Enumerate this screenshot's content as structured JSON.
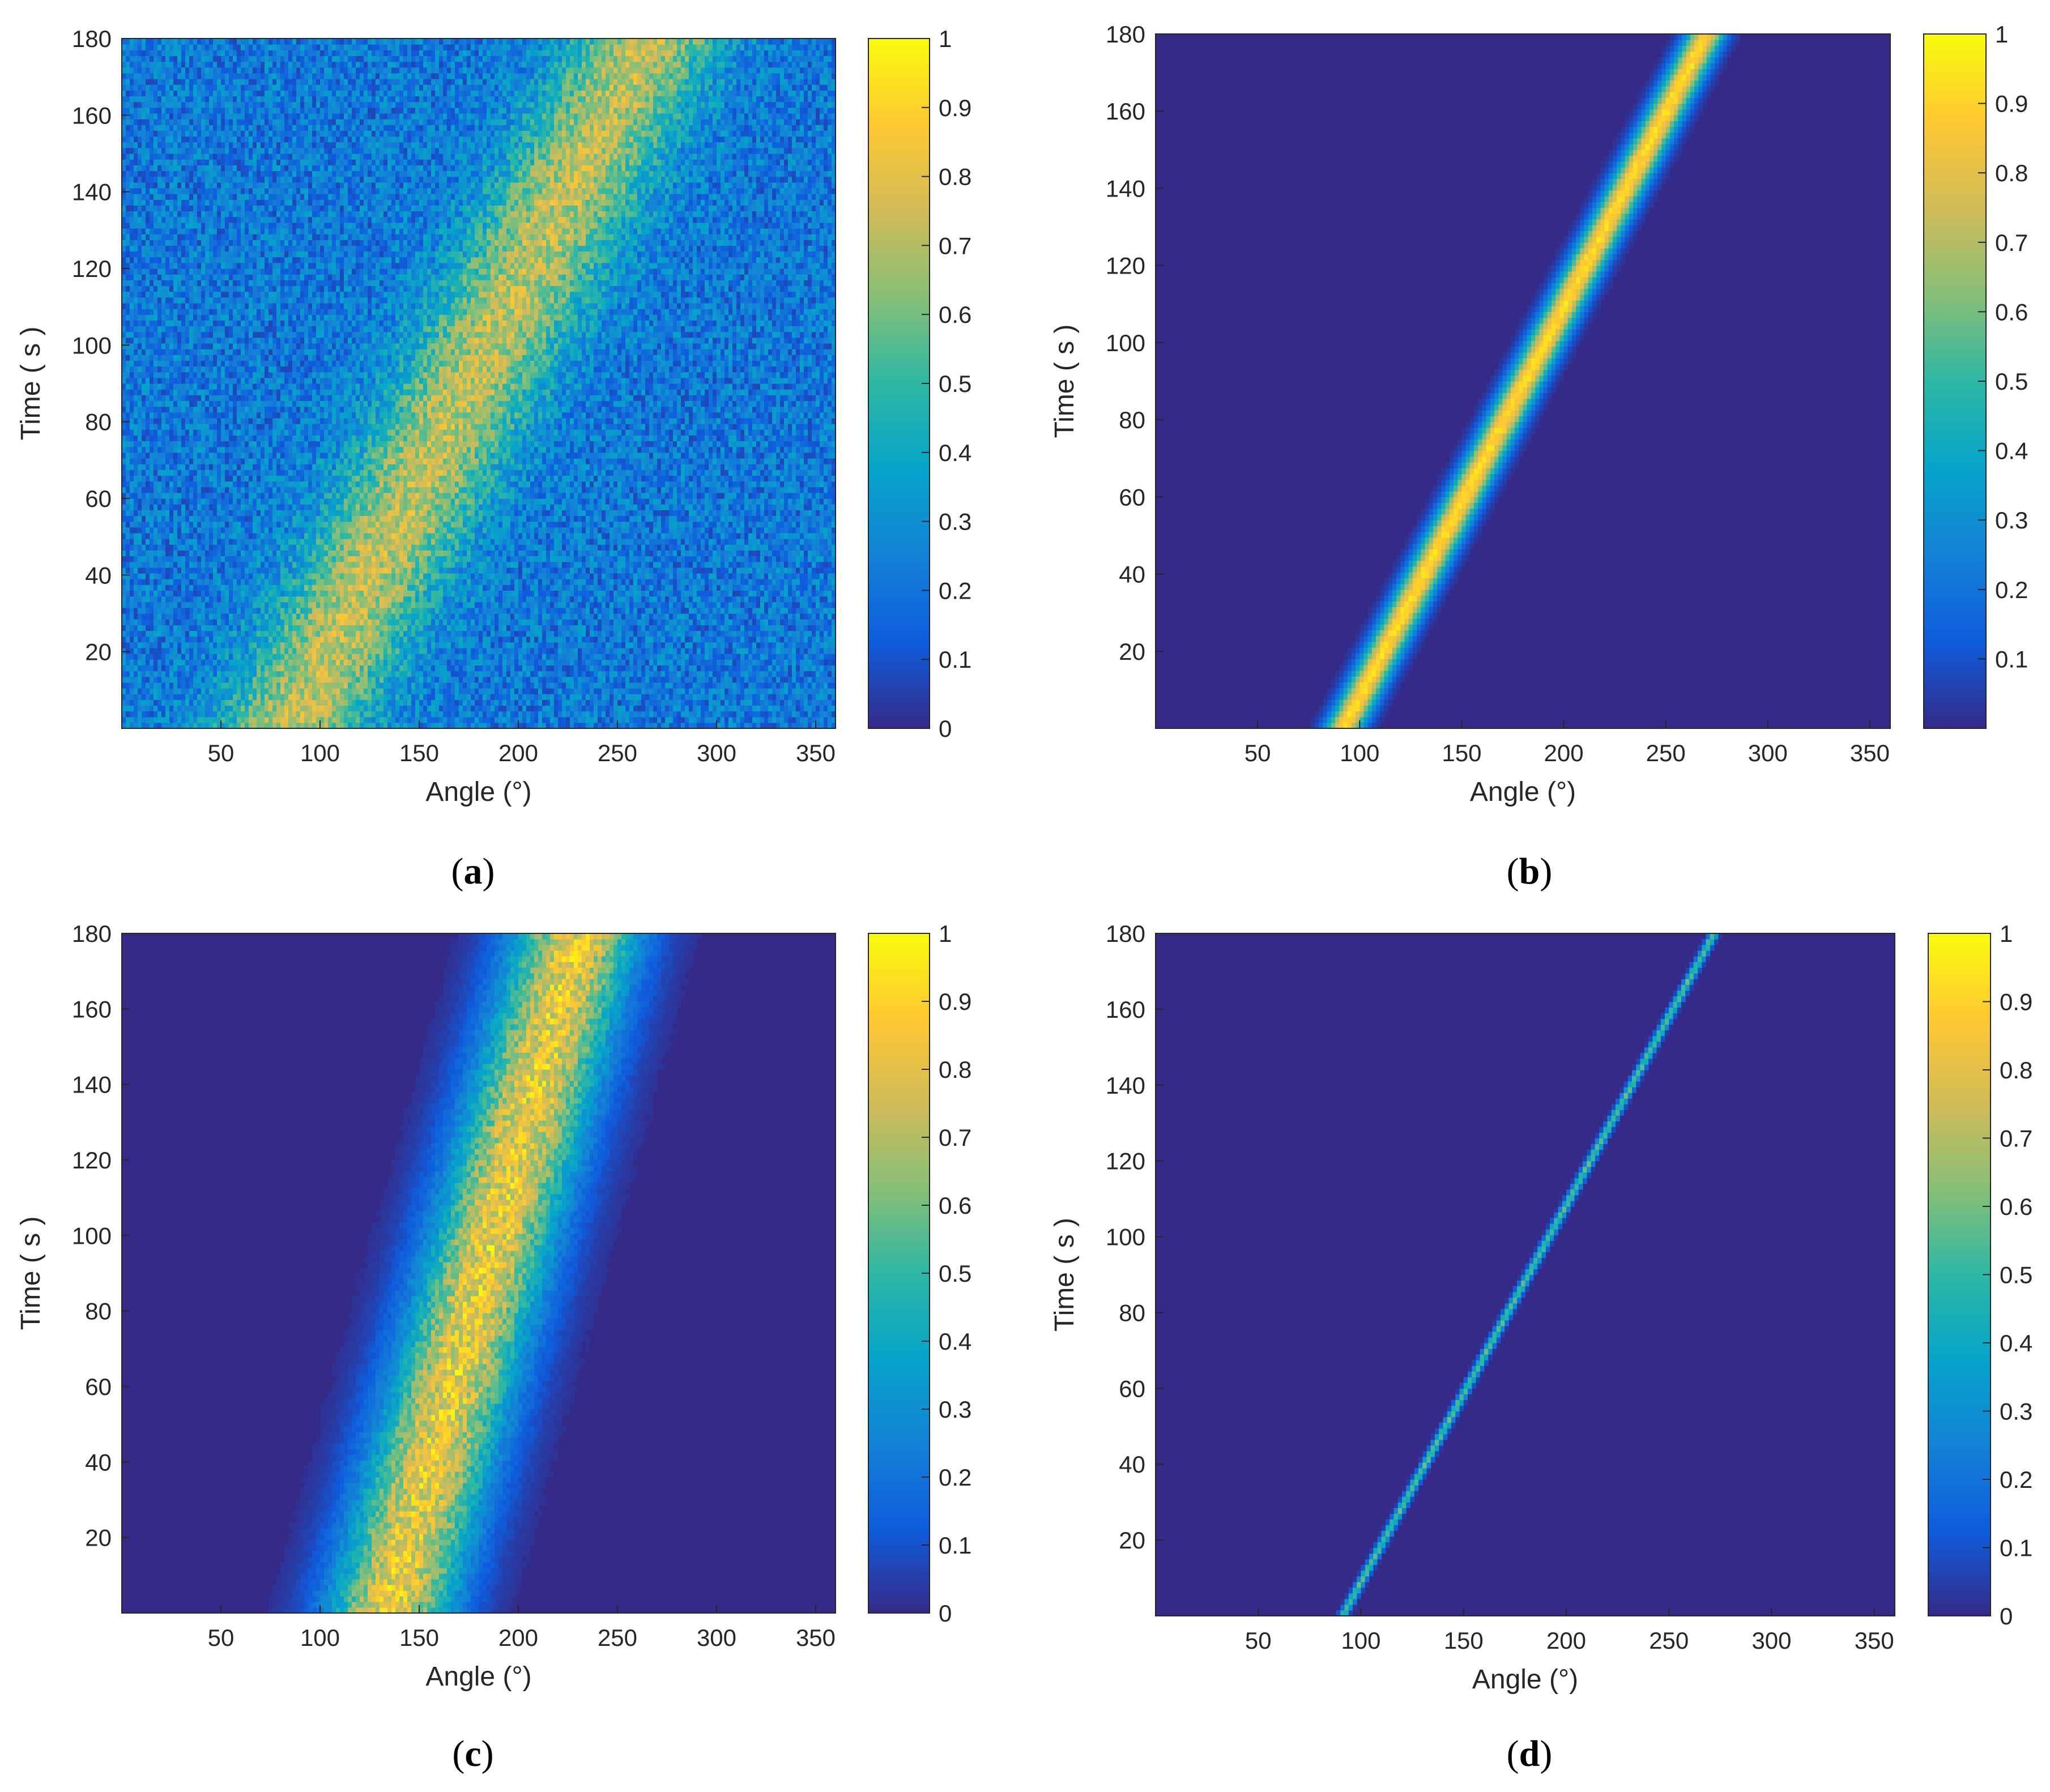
{
  "colormap": {
    "name": "parula",
    "stops": [
      "#352a87",
      "#0f5cdd",
      "#1481d6",
      "#06a4ca",
      "#2eb7a4",
      "#87bf77",
      "#d1bb59",
      "#fec832",
      "#f9fb0e"
    ]
  },
  "chart_data": [
    {
      "panel": "a",
      "type": "heatmap",
      "xlabel": "Angle (°)",
      "ylabel": "Time ( s )",
      "xlim": [
        0,
        360
      ],
      "ylim": [
        0,
        180
      ],
      "xticks": [
        50,
        100,
        150,
        200,
        250,
        300,
        350
      ],
      "yticks": [
        20,
        40,
        60,
        80,
        100,
        120,
        140,
        160,
        180
      ],
      "colorbar": {
        "min": 0,
        "max": 1,
        "ticks": [
          0,
          0.1,
          0.2,
          0.3,
          0.4,
          0.5,
          0.6,
          0.7,
          0.8,
          0.9,
          1
        ]
      },
      "track": {
        "angle_at_t0": 85,
        "angle_at_t180": 265,
        "width_deg": 38,
        "peak": 0.72,
        "background": 0.22,
        "noise": 0.3
      }
    },
    {
      "panel": "b",
      "type": "heatmap",
      "xlabel": "Angle (°)",
      "ylabel": "Time ( s )",
      "xlim": [
        0,
        360
      ],
      "ylim": [
        0,
        180
      ],
      "xticks": [
        50,
        100,
        150,
        200,
        250,
        300,
        350
      ],
      "yticks": [
        20,
        40,
        60,
        80,
        100,
        120,
        140,
        160,
        180
      ],
      "colorbar": {
        "min": 0,
        "max": 1,
        "ticks": [
          0.1,
          0.2,
          0.3,
          0.4,
          0.5,
          0.6,
          0.7,
          0.8,
          0.9,
          1
        ]
      },
      "track": {
        "angle_at_t0": 92,
        "angle_at_t180": 270,
        "width_deg": 9,
        "peak": 0.92,
        "background": 0.0,
        "noise": 0.06
      }
    },
    {
      "panel": "c",
      "type": "heatmap",
      "xlabel": "Angle (°)",
      "ylabel": "Time ( s )",
      "xlim": [
        0,
        360
      ],
      "ylim": [
        0,
        180
      ],
      "xticks": [
        50,
        100,
        150,
        200,
        250,
        300,
        350
      ],
      "yticks": [
        20,
        40,
        60,
        80,
        100,
        120,
        140,
        160,
        180
      ],
      "colorbar": {
        "min": 0,
        "max": 1,
        "ticks": [
          0,
          0.1,
          0.2,
          0.3,
          0.4,
          0.5,
          0.6,
          0.7,
          0.8,
          0.9,
          1
        ]
      },
      "track": {
        "angle_at_t0": 135,
        "angle_at_t180": 230,
        "width_deg": 32,
        "peak": 0.82,
        "background": 0.0,
        "noise": 0.22
      }
    },
    {
      "panel": "d",
      "type": "heatmap",
      "xlabel": "Angle (°)",
      "ylabel": "Time ( s )",
      "xlim": [
        0,
        360
      ],
      "ylim": [
        0,
        180
      ],
      "xticks": [
        50,
        100,
        150,
        200,
        250,
        300,
        350
      ],
      "yticks": [
        20,
        40,
        60,
        80,
        100,
        120,
        140,
        160,
        180
      ],
      "colorbar": {
        "min": 0,
        "max": 1,
        "ticks": [
          0,
          0.1,
          0.2,
          0.3,
          0.4,
          0.5,
          0.6,
          0.7,
          0.8,
          0.9,
          1
        ]
      },
      "track": {
        "angle_at_t0": 91,
        "angle_at_t180": 272,
        "width_deg": 2.2,
        "peak": 0.55,
        "background": 0.0,
        "noise": 0.05
      }
    }
  ]
}
